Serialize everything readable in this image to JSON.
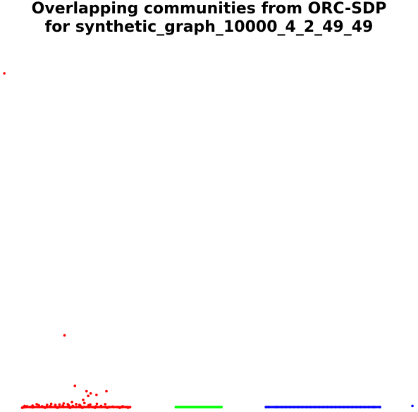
{
  "title_lines": [
    "Overlapping communities from ORC-SDP",
    "for synthetic_graph_10000_4_2_49_49"
  ],
  "chart_data": {
    "type": "scatter",
    "title": "Overlapping communities from ORC-SDP for synthetic_graph_10000_4_2_49_49",
    "xlabel": "",
    "ylabel": "",
    "xlim": [
      0,
      1
    ],
    "ylim": [
      0,
      1
    ],
    "grid": false,
    "axes_visible": false,
    "series": [
      {
        "color": "#ff0000",
        "points": [
          [
            0.007,
            0.937
          ],
          [
            0.152,
            0.206
          ],
          [
            0.177,
            0.065
          ],
          [
            0.205,
            0.05
          ],
          [
            0.215,
            0.044
          ],
          [
            0.209,
            0.037
          ],
          [
            0.229,
            0.04
          ],
          [
            0.253,
            0.05
          ],
          [
            0.197,
            0.026
          ],
          [
            0.17,
            0.02
          ],
          [
            0.12,
            0.015
          ],
          [
            0.15,
            0.016
          ],
          [
            0.2,
            0.017
          ],
          [
            0.23,
            0.015
          ],
          [
            0.25,
            0.014
          ],
          [
            0.16,
            0.014
          ],
          [
            0.18,
            0.014
          ],
          [
            0.14,
            0.013
          ],
          [
            0.11,
            0.012
          ],
          [
            0.13,
            0.012
          ],
          [
            0.085,
            0.014
          ],
          [
            0.09,
            0.011
          ],
          [
            0.075,
            0.01
          ],
          [
            0.19,
            0.01
          ],
          [
            0.21,
            0.011
          ],
          [
            0.24,
            0.009
          ],
          [
            0.056,
            0.009
          ],
          [
            0.054,
            0.005
          ],
          [
            0.06,
            0.006
          ],
          [
            0.07,
            0.006
          ],
          [
            0.08,
            0.006
          ],
          [
            0.09,
            0.006
          ],
          [
            0.1,
            0.006
          ],
          [
            0.11,
            0.006
          ],
          [
            0.12,
            0.006
          ],
          [
            0.13,
            0.006
          ],
          [
            0.14,
            0.006
          ],
          [
            0.15,
            0.006
          ],
          [
            0.16,
            0.006
          ],
          [
            0.17,
            0.006
          ],
          [
            0.18,
            0.006
          ],
          [
            0.19,
            0.006
          ],
          [
            0.2,
            0.006
          ],
          [
            0.21,
            0.006
          ],
          [
            0.22,
            0.006
          ],
          [
            0.23,
            0.006
          ],
          [
            0.24,
            0.006
          ],
          [
            0.25,
            0.006
          ],
          [
            0.26,
            0.006
          ],
          [
            0.27,
            0.006
          ],
          [
            0.28,
            0.006
          ],
          [
            0.29,
            0.006
          ],
          [
            0.3,
            0.006
          ],
          [
            0.31,
            0.006
          ],
          [
            0.05,
            0.004
          ],
          [
            0.075,
            0.005
          ],
          [
            0.105,
            0.004
          ],
          [
            0.135,
            0.004
          ],
          [
            0.165,
            0.004
          ],
          [
            0.195,
            0.004
          ],
          [
            0.225,
            0.004
          ],
          [
            0.255,
            0.004
          ],
          [
            0.285,
            0.004
          ],
          [
            0.305,
            0.004
          ],
          [
            0.062,
            0.008
          ],
          [
            0.118,
            0.009
          ],
          [
            0.098,
            0.008
          ],
          [
            0.172,
            0.009
          ],
          [
            0.228,
            0.008
          ],
          [
            0.268,
            0.007
          ],
          [
            0.292,
            0.008
          ],
          [
            0.148,
            0.01
          ],
          [
            0.188,
            0.012
          ],
          [
            0.162,
            0.011
          ],
          [
            0.214,
            0.013
          ]
        ]
      },
      {
        "color": "#00ff00",
        "points": [
          [
            0.42,
            0.006
          ],
          [
            0.425,
            0.006
          ],
          [
            0.43,
            0.006
          ],
          [
            0.435,
            0.006
          ],
          [
            0.44,
            0.006
          ],
          [
            0.445,
            0.006
          ],
          [
            0.45,
            0.006
          ],
          [
            0.455,
            0.006
          ],
          [
            0.46,
            0.006
          ],
          [
            0.465,
            0.006
          ],
          [
            0.47,
            0.006
          ],
          [
            0.475,
            0.006
          ],
          [
            0.48,
            0.006
          ],
          [
            0.485,
            0.006
          ],
          [
            0.49,
            0.006
          ],
          [
            0.495,
            0.006
          ],
          [
            0.5,
            0.006
          ],
          [
            0.505,
            0.006
          ],
          [
            0.51,
            0.006
          ],
          [
            0.515,
            0.006
          ],
          [
            0.52,
            0.006
          ],
          [
            0.525,
            0.006
          ],
          [
            0.53,
            0.006
          ]
        ]
      },
      {
        "color": "#0000ff",
        "points": [
          [
            0.637,
            0.006
          ],
          [
            0.643,
            0.006
          ],
          [
            0.66,
            0.006
          ],
          [
            0.665,
            0.006
          ],
          [
            0.675,
            0.006
          ],
          [
            0.685,
            0.006
          ],
          [
            0.695,
            0.006
          ],
          [
            0.705,
            0.006
          ],
          [
            0.715,
            0.006
          ],
          [
            0.725,
            0.006
          ],
          [
            0.735,
            0.006
          ],
          [
            0.745,
            0.006
          ],
          [
            0.755,
            0.006
          ],
          [
            0.765,
            0.006
          ],
          [
            0.775,
            0.006
          ],
          [
            0.785,
            0.006
          ],
          [
            0.795,
            0.006
          ],
          [
            0.805,
            0.006
          ],
          [
            0.815,
            0.006
          ],
          [
            0.825,
            0.006
          ],
          [
            0.835,
            0.006
          ],
          [
            0.845,
            0.006
          ],
          [
            0.855,
            0.006
          ],
          [
            0.865,
            0.006
          ],
          [
            0.875,
            0.006
          ],
          [
            0.885,
            0.006
          ],
          [
            0.895,
            0.006
          ],
          [
            0.899,
            0.006
          ],
          [
            0.912,
            0.006
          ],
          [
            0.99,
            0.009
          ]
        ]
      }
    ]
  }
}
